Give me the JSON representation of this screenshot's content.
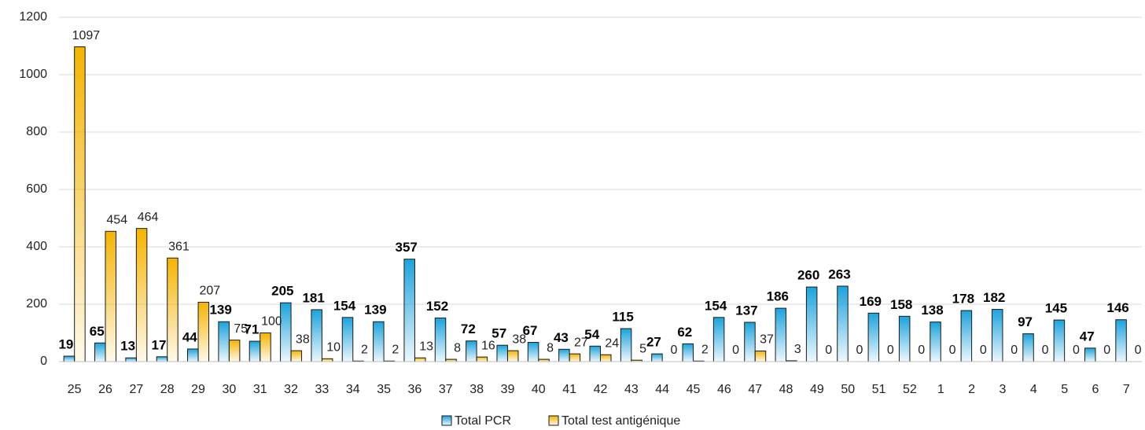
{
  "chart_data": {
    "type": "bar",
    "categories": [
      "25",
      "26",
      "27",
      "28",
      "29",
      "30",
      "31",
      "32",
      "33",
      "34",
      "35",
      "36",
      "37",
      "38",
      "39",
      "40",
      "41",
      "42",
      "43",
      "44",
      "45",
      "46",
      "47",
      "48",
      "49",
      "50",
      "51",
      "52",
      "1",
      "2",
      "3",
      "4",
      "5",
      "6",
      "7"
    ],
    "series": [
      {
        "name": "Total PCR",
        "color": "#1ba3dc",
        "values": [
          19,
          65,
          13,
          17,
          44,
          139,
          71,
          205,
          181,
          154,
          139,
          357,
          152,
          72,
          57,
          67,
          43,
          54,
          115,
          27,
          62,
          154,
          137,
          186,
          260,
          263,
          169,
          158,
          138,
          178,
          182,
          97,
          145,
          47,
          146
        ]
      },
      {
        "name": "Total test antigénique",
        "color": "#f5b400",
        "values": [
          1097,
          454,
          464,
          361,
          207,
          75,
          100,
          38,
          10,
          2,
          2,
          13,
          8,
          16,
          38,
          8,
          27,
          24,
          5,
          0,
          2,
          0,
          37,
          3,
          0,
          0,
          0,
          0,
          0,
          0,
          0,
          0,
          0,
          0,
          0
        ]
      }
    ],
    "ylim": [
      0,
      1200
    ],
    "yticks": [
      0,
      200,
      400,
      600,
      800,
      1000,
      1200
    ],
    "grid": true,
    "legend": "bottom"
  }
}
